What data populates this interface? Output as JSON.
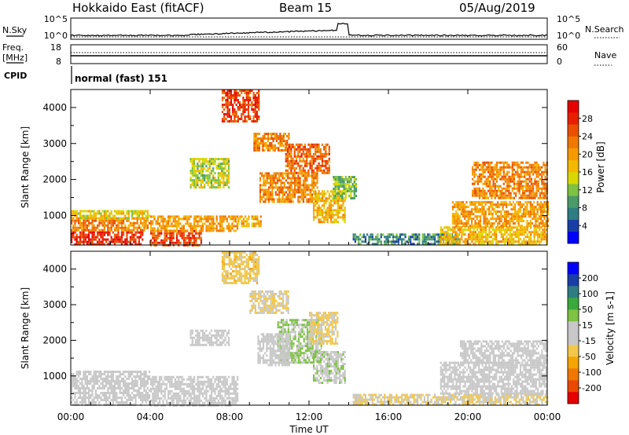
{
  "header": {
    "station": "Hokkaido East (fitACF)",
    "beam": "Beam 15",
    "date": "05/Aug/2019"
  },
  "top_panels": {
    "nsky_label": "N.Sky",
    "nsky_ticks": [
      "10^5",
      "10^0"
    ],
    "nsearch_label": "N.Search",
    "nsearch_ticks": [
      "10^5",
      "10^0"
    ],
    "freq_label_1": "Freq.",
    "freq_label_2": "[MHz]",
    "freq_ticks": [
      "18",
      "8"
    ],
    "nave_label": "Nave",
    "nave_ticks": [
      "60",
      "0"
    ],
    "cpid_label": "CPID",
    "cpid_text": "normal (fast) 151"
  },
  "chart_data": [
    {
      "type": "heatmap",
      "quantity": "power",
      "ylabel": "Slant Range [km]",
      "ylim": [
        180,
        4500
      ],
      "yticks": [
        1000,
        2000,
        3000,
        4000
      ],
      "x_hours": [
        0,
        24
      ],
      "colorbar": {
        "label": "Power [dB]",
        "range": [
          0,
          32
        ],
        "ticks": [
          "4",
          "8",
          "12",
          "16",
          "20",
          "24",
          "28"
        ],
        "colors": [
          "#0000ff",
          "#1a3ea8",
          "#2e7d82",
          "#4a9a6a",
          "#7dc242",
          "#d8d800",
          "#f5b800",
          "#f59a00",
          "#f07800",
          "#ea5000",
          "#e82000",
          "#e60000"
        ]
      },
      "regions": [
        {
          "t0": 0.0,
          "t1": 3.6,
          "r0": 200,
          "r1": 560,
          "value": 28
        },
        {
          "t0": 0.0,
          "t1": 4.0,
          "r0": 560,
          "r1": 950,
          "value": 22
        },
        {
          "t0": 0.0,
          "t1": 4.0,
          "r0": 950,
          "r1": 1150,
          "value": 16
        },
        {
          "t0": 4.0,
          "t1": 6.6,
          "r0": 200,
          "r1": 600,
          "value": 26
        },
        {
          "t0": 4.0,
          "t1": 8.4,
          "r0": 600,
          "r1": 1000,
          "value": 20
        },
        {
          "t0": 8.4,
          "t1": 9.6,
          "r0": 700,
          "r1": 1000,
          "value": 18
        },
        {
          "t0": 7.6,
          "t1": 9.5,
          "r0": 3600,
          "r1": 4500,
          "value": 26
        },
        {
          "t0": 9.2,
          "t1": 11.0,
          "r0": 2800,
          "r1": 3300,
          "value": 22
        },
        {
          "t0": 10.8,
          "t1": 13.0,
          "r0": 2200,
          "r1": 3000,
          "value": 24
        },
        {
          "t0": 9.5,
          "t1": 12.4,
          "r0": 1400,
          "r1": 2200,
          "value": 22
        },
        {
          "t0": 12.2,
          "t1": 13.8,
          "r0": 800,
          "r1": 1700,
          "value": 18
        },
        {
          "t0": 6.0,
          "t1": 8.0,
          "r0": 1800,
          "r1": 2600,
          "value": 14
        },
        {
          "t0": 13.2,
          "t1": 14.4,
          "r0": 1500,
          "r1": 2100,
          "value": 12
        },
        {
          "t0": 14.2,
          "t1": 19.6,
          "r0": 200,
          "r1": 500,
          "value": 8
        },
        {
          "t0": 18.6,
          "t1": 24.0,
          "r0": 200,
          "r1": 700,
          "value": 18
        },
        {
          "t0": 19.2,
          "t1": 24.0,
          "r0": 700,
          "r1": 1400,
          "value": 20
        },
        {
          "t0": 20.2,
          "t1": 24.0,
          "r0": 1500,
          "r1": 2500,
          "value": 22
        }
      ]
    },
    {
      "type": "heatmap",
      "quantity": "velocity",
      "ylabel": "Slant Range [km]",
      "ylim": [
        180,
        4500
      ],
      "yticks": [
        1000,
        2000,
        3000,
        4000
      ],
      "x_hours": [
        0,
        24
      ],
      "xlabel": "Time UT",
      "xticks": [
        "00:00",
        "04:00",
        "08:00",
        "12:00",
        "16:00",
        "20:00",
        "00:00"
      ],
      "colorbar": {
        "label": "Velocity [m s-1]",
        "range": [
          -250,
          250
        ],
        "ticks": [
          "200",
          "100",
          "50",
          "15",
          "-15",
          "-50",
          "-100",
          "-200"
        ],
        "colors": [
          "#e60000",
          "#ea4800",
          "#f07800",
          "#f5a500",
          "#f2c84a",
          "#c8c8c8",
          "#c8c8c8",
          "#7dc242",
          "#3aa83a",
          "#2e7d82",
          "#1a3ea8",
          "#0000ff"
        ]
      },
      "regions": [
        {
          "t0": 0.0,
          "t1": 4.0,
          "r0": 200,
          "r1": 1150,
          "value": 0
        },
        {
          "t0": 4.0,
          "t1": 8.4,
          "r0": 200,
          "r1": 1000,
          "value": 0
        },
        {
          "t0": 7.6,
          "t1": 9.5,
          "r0": 3600,
          "r1": 4500,
          "value": -60
        },
        {
          "t0": 9.0,
          "t1": 11.0,
          "r0": 2800,
          "r1": 3400,
          "value": -40
        },
        {
          "t0": 10.4,
          "t1": 12.6,
          "r0": 1400,
          "r1": 2600,
          "value": 40
        },
        {
          "t0": 12.0,
          "t1": 13.4,
          "r0": 1900,
          "r1": 2800,
          "value": -50
        },
        {
          "t0": 9.4,
          "t1": 11.0,
          "r0": 1300,
          "r1": 2200,
          "value": 0
        },
        {
          "t0": 12.2,
          "t1": 13.8,
          "r0": 800,
          "r1": 1700,
          "value": 30
        },
        {
          "t0": 6.0,
          "t1": 8.0,
          "r0": 1900,
          "r1": 2300,
          "value": 0
        },
        {
          "t0": 14.2,
          "t1": 24.0,
          "r0": 200,
          "r1": 500,
          "value": -40
        },
        {
          "t0": 18.6,
          "t1": 24.0,
          "r0": 500,
          "r1": 1400,
          "value": 0
        },
        {
          "t0": 19.6,
          "t1": 24.0,
          "r0": 1400,
          "r1": 2000,
          "value": 0
        }
      ]
    }
  ]
}
